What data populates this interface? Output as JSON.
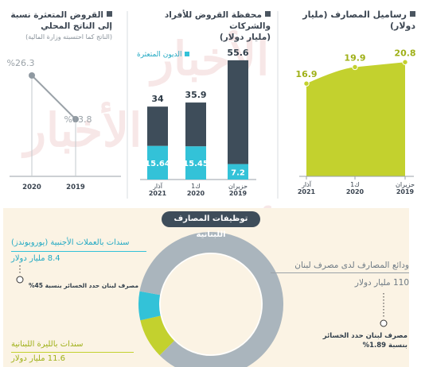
{
  "watermark": "الأخبار",
  "colors": {
    "lime": "#c3d12e",
    "lime_text": "#9fb018",
    "dark_bar": "#3e4d5a",
    "cyan": "#33c2d8",
    "cyan_text": "#22a9c3",
    "donut_gray": "#aab5bd",
    "line_gray": "#9aa2a8",
    "panel_bg": "#fbf3e4",
    "title_dark": "#3a4450"
  },
  "panel1": {
    "title": "رساميل المصارف (مليار دولار)"
  },
  "panel2": {
    "title_line1": "محفظة القروض للأفراد والشركات",
    "title_line2": "(مليار دولار)",
    "legend_label": "الديون المتعثرة"
  },
  "panel3": {
    "title_line1": "القروض المتعثرة نسبة",
    "title_line2": "إلى الناتج المحلي",
    "subtitle": "(الناتج كما احتسبته وزارة المالية)"
  },
  "donut_section": {
    "title": "توظيفات المصارف اللبنانية",
    "right_label": "ودائع المصارف لدى مصرف لبنان",
    "right_value": "110 مليار دولار",
    "right_note_line1": "مصرف لبنان حدد الخسائر",
    "right_note_line2": "بنسبة 1.89%",
    "left_top_label": "سندات بالعملات الأجنبية (يوروبوندز)",
    "left_top_value": "8.4 مليار دولار",
    "left_top_note": "مصرف لبنان حدد الخسائر بنسبة 45%",
    "left_bottom_label": "سندات بالليرة اللبنانية",
    "left_bottom_value": "11.6 مليار دولار"
  },
  "chart_data": [
    {
      "type": "area",
      "title": "رساميل المصارف (مليار دولار)",
      "categories": [
        "حزيران 2019",
        "ك1 2020",
        "آذار 2021"
      ],
      "values": [
        20.8,
        19.9,
        16.9
      ],
      "value_labels": [
        "20.8",
        "19.9",
        "16.9"
      ]
    },
    {
      "type": "bar",
      "title": "محفظة القروض للأفراد والشركات (مليار دولار)",
      "categories": [
        "حزيران 2019",
        "ك1 2020",
        "آذار 2021"
      ],
      "series": [
        {
          "name": "",
          "values": [
            55.6,
            35.9,
            34
          ]
        },
        {
          "name": "الديون المتعثرة",
          "values": [
            7.2,
            15.45,
            15.64
          ]
        }
      ],
      "total_labels": [
        "55.6",
        "35.9",
        "34"
      ],
      "sub_labels": [
        "7.2",
        "15.45",
        "15.64"
      ]
    },
    {
      "type": "line",
      "title": "القروض المتعثرة نسبة إلى الناتج المحلي",
      "categories": [
        "2019",
        "2020"
      ],
      "values": [
        13.8,
        26.3
      ],
      "value_labels": [
        "%13.8",
        "%26.3"
      ]
    },
    {
      "type": "pie",
      "title": "توظيفات المصارف اللبنانية",
      "categories": [
        "ودائع المصارف لدى مصرف لبنان",
        "سندات بالعملات الأجنبية (يوروبوندز)",
        "سندات بالليرة اللبنانية"
      ],
      "values": [
        110,
        8.4,
        11.6
      ]
    }
  ]
}
